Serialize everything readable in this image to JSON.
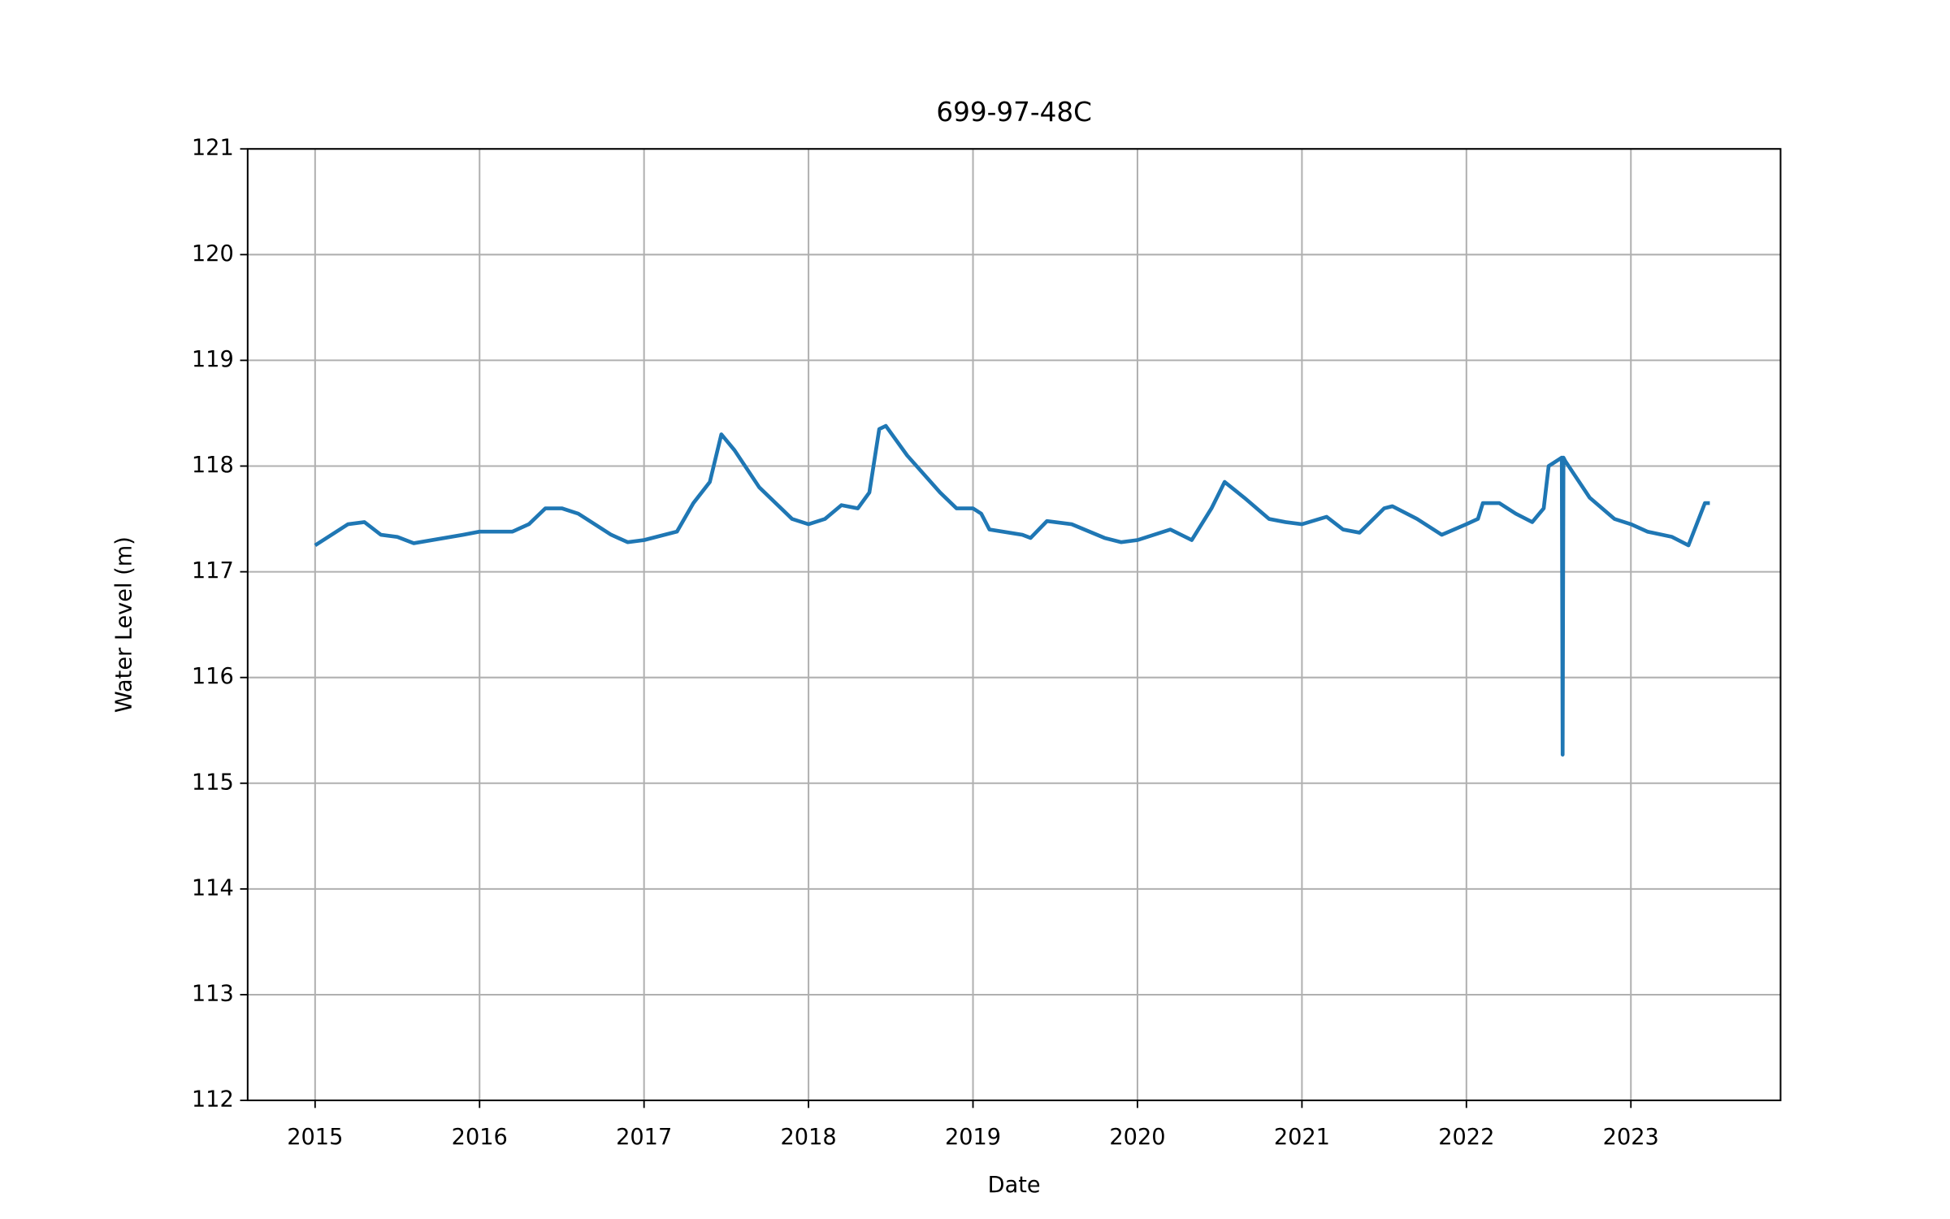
{
  "chart_data": {
    "type": "line",
    "title": "699-97-48C",
    "x_label": "Date",
    "y_label": "Water Level (m)",
    "x": [
      2015.0,
      2015.1,
      2015.2,
      2015.3,
      2015.4,
      2015.5,
      2015.6,
      2015.9,
      2016.0,
      2016.2,
      2016.3,
      2016.4,
      2016.5,
      2016.6,
      2016.8,
      2016.9,
      2017.0,
      2017.2,
      2017.3,
      2017.4,
      2017.47,
      2017.55,
      2017.7,
      2017.9,
      2018.0,
      2018.1,
      2018.2,
      2018.3,
      2018.37,
      2018.43,
      2018.47,
      2018.6,
      2018.8,
      2018.9,
      2019.0,
      2019.05,
      2019.1,
      2019.3,
      2019.35,
      2019.45,
      2019.6,
      2019.8,
      2019.9,
      2020.0,
      2020.2,
      2020.33,
      2020.45,
      2020.53,
      2020.65,
      2020.8,
      2020.9,
      2021.0,
      2021.15,
      2021.25,
      2021.35,
      2021.5,
      2021.55,
      2021.7,
      2021.85,
      2022.0,
      2022.07,
      2022.1,
      2022.2,
      2022.3,
      2022.4,
      2022.47,
      2022.5,
      2022.58,
      2022.585,
      2022.59,
      2022.6,
      2022.75,
      2022.9,
      2023.0,
      2023.1,
      2023.25,
      2023.35,
      2023.45,
      2023.48
    ],
    "series": [
      {
        "name": "Water Level",
        "color": "#1f77b4",
        "values": [
          117.25,
          117.35,
          117.45,
          117.47,
          117.35,
          117.33,
          117.27,
          117.35,
          117.38,
          117.38,
          117.45,
          117.6,
          117.6,
          117.55,
          117.35,
          117.28,
          117.3,
          117.38,
          117.65,
          117.85,
          118.3,
          118.15,
          117.8,
          117.5,
          117.45,
          117.5,
          117.63,
          117.6,
          117.75,
          118.35,
          118.38,
          118.1,
          117.75,
          117.6,
          117.6,
          117.55,
          117.4,
          117.35,
          117.32,
          117.48,
          117.45,
          117.32,
          117.28,
          117.3,
          117.4,
          117.3,
          117.6,
          117.85,
          117.7,
          117.5,
          117.47,
          117.45,
          117.52,
          117.4,
          117.37,
          117.6,
          117.62,
          117.5,
          117.35,
          117.45,
          117.5,
          117.65,
          117.65,
          117.55,
          117.47,
          117.6,
          118.0,
          118.08,
          115.27,
          118.08,
          118.05,
          117.7,
          117.5,
          117.45,
          117.38,
          117.33,
          117.25,
          117.65,
          117.65
        ]
      }
    ],
    "xlim": [
      2014.59,
      2023.91
    ],
    "ylim": [
      112,
      121
    ],
    "xticks": [
      2015,
      2016,
      2017,
      2018,
      2019,
      2020,
      2021,
      2022,
      2023
    ],
    "yticks": [
      112,
      113,
      114,
      115,
      116,
      117,
      118,
      119,
      120,
      121
    ],
    "grid": true
  }
}
